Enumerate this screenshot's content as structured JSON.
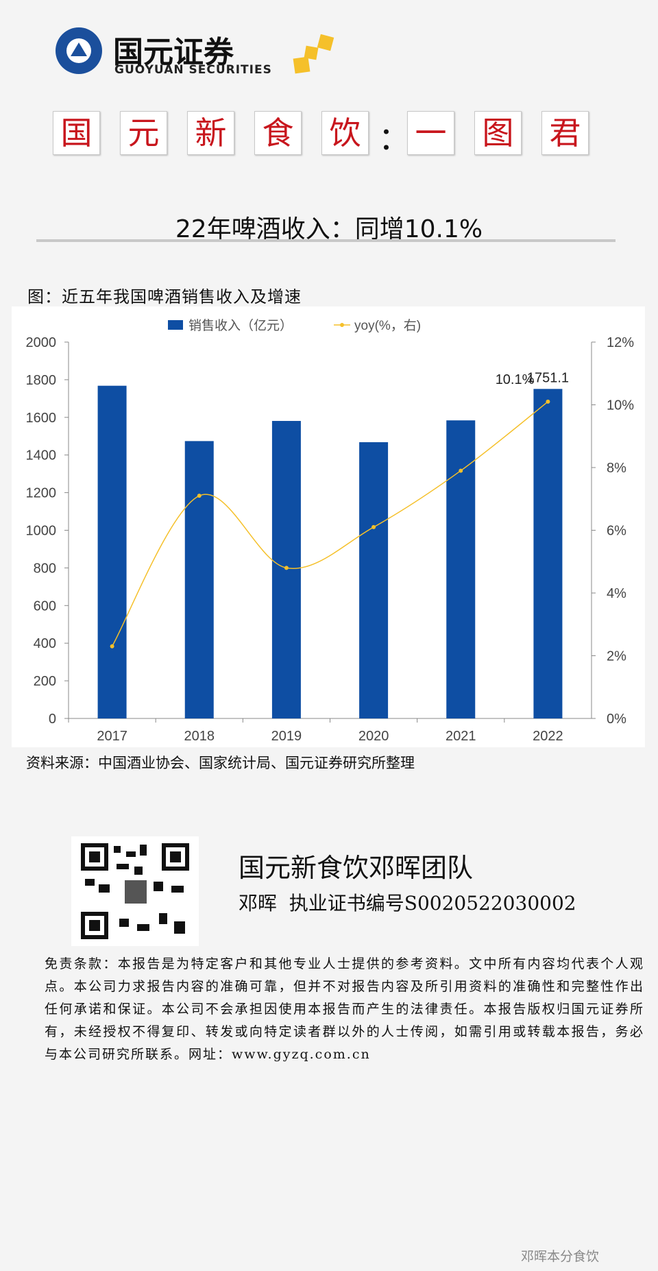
{
  "header": {
    "logo_name": "国元证券",
    "logo_en": "GUOYUAN SECURITIES",
    "banner_left": [
      "国",
      "元",
      "新",
      "食",
      "饮"
    ],
    "banner_sep": "：",
    "banner_right": [
      "一",
      "图",
      "君"
    ],
    "subtitle": "22年啤酒收入：同增10.1%"
  },
  "figure_title": "图：近五年我国啤酒销售收入及增速",
  "chart_data": {
    "type": "bar",
    "categories": [
      "2017",
      "2018",
      "2019",
      "2020",
      "2021",
      "2022"
    ],
    "series": [
      {
        "name": "销售收入（亿元）",
        "type": "bar",
        "color": "#0e4ea3",
        "values": [
          1768,
          1474,
          1581,
          1468,
          1584,
          1751.1
        ],
        "value_labels": [
          null,
          null,
          null,
          null,
          null,
          "1751.1"
        ]
      },
      {
        "name": "yoy(%，右)",
        "type": "line",
        "axis": "y2",
        "color": "#f5c02a",
        "values": [
          2.3,
          7.1,
          4.8,
          6.1,
          7.9,
          10.1
        ],
        "value_labels": [
          null,
          null,
          null,
          null,
          null,
          "10.1%"
        ]
      }
    ],
    "ylim": [
      0,
      2000
    ],
    "yticks": [
      0,
      200,
      400,
      600,
      800,
      1000,
      1200,
      1400,
      1600,
      1800,
      2000
    ],
    "y2lim": [
      0,
      12
    ],
    "y2ticks": [
      {
        "value": 0,
        "label": "0%"
      },
      {
        "value": 2,
        "label": "2%"
      },
      {
        "value": 4,
        "label": "4%"
      },
      {
        "value": 6,
        "label": "6%"
      },
      {
        "value": 8,
        "label": "8%"
      },
      {
        "value": 10,
        "label": "10%"
      },
      {
        "value": 12,
        "label": "12%"
      }
    ],
    "grid": false,
    "legend": "top"
  },
  "source": "资料来源：中国酒业协会、国家统计局、国元证券研究所整理",
  "footer": {
    "team": "国元新食饮邓晖团队",
    "license": "邓晖  执业证书编号S0020522030002",
    "disclaimer": "免责条款：本报告是为特定客户和其他专业人士提供的参考资料。文中所有内容均代表个人观点。本公司力求报告内容的准确可靠，但并不对报告内容及所引用资料的准确性和完整性作出任何承诺和保证。本公司不会承担因使用本报告而产生的法律责任。本报告版权归国元证券所有，未经授权不得复印、转发或向特定读者群以外的人士传阅，如需引用或转载本报告，务必与本公司研究所联系。网址：www.gyzq.com.cn",
    "watermark": "邓晖本分食饮"
  }
}
